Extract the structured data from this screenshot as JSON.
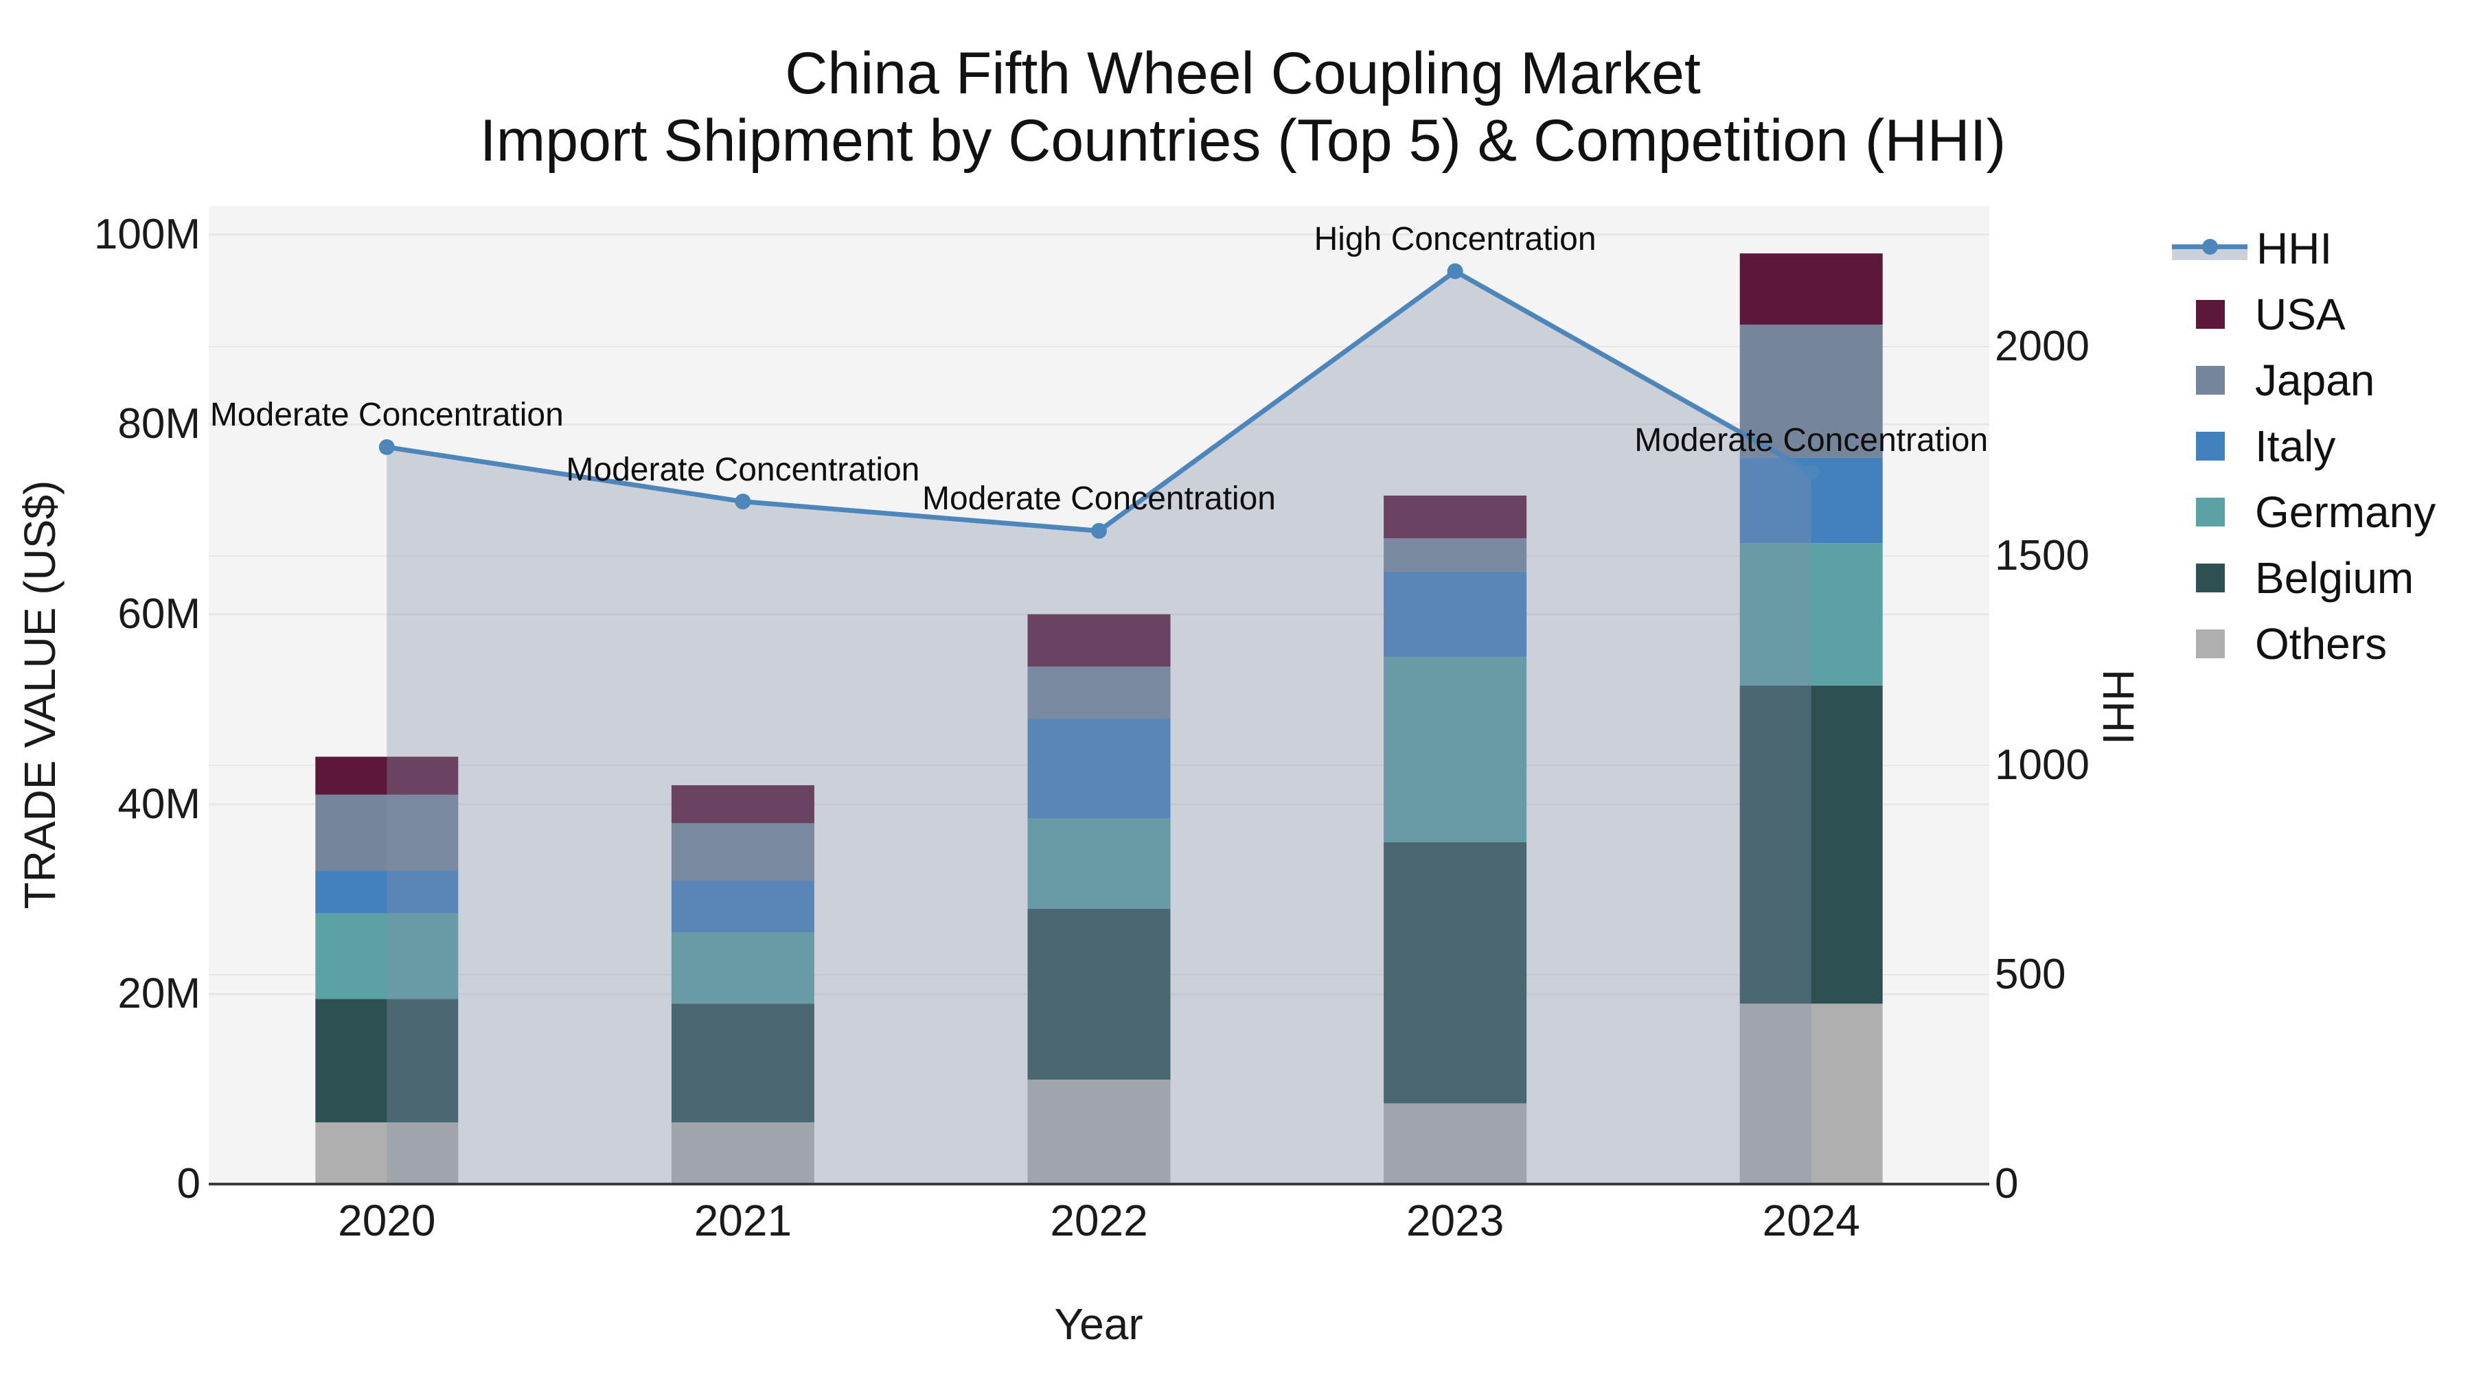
{
  "title": {
    "line1": "China Fifth Wheel Coupling Market",
    "line2": "Import Shipment by Countries (Top 5) & Competition (HHI)"
  },
  "axes": {
    "y_left": {
      "title": "TRADE VALUE (US$)",
      "ticks": [
        "0",
        "20M",
        "40M",
        "60M",
        "80M",
        "100M"
      ],
      "tick_values": [
        0,
        20,
        40,
        60,
        80,
        100
      ]
    },
    "y_right": {
      "title": "HHI",
      "ticks": [
        "0",
        "500",
        "1000",
        "1500",
        "2000"
      ],
      "tick_values": [
        0,
        500,
        1000,
        1500,
        2000
      ]
    },
    "x": {
      "title": "Year",
      "categories": [
        "2020",
        "2021",
        "2022",
        "2023",
        "2024"
      ]
    }
  },
  "legend": {
    "items": [
      {
        "label": "HHI",
        "type": "line",
        "color": "#4D86BB"
      },
      {
        "label": "USA",
        "type": "swatch",
        "color": "#5D173A"
      },
      {
        "label": "Japan",
        "type": "swatch",
        "color": "#75859A"
      },
      {
        "label": "Italy",
        "type": "swatch",
        "color": "#4380BE"
      },
      {
        "label": "Germany",
        "type": "swatch",
        "color": "#5CA2A4"
      },
      {
        "label": "Belgium",
        "type": "swatch",
        "color": "#2D5152"
      },
      {
        "label": "Others",
        "type": "swatch",
        "color": "#AFAFAF"
      }
    ]
  },
  "annotations": [
    {
      "year": "2020",
      "text": "Moderate Concentration"
    },
    {
      "year": "2021",
      "text": "Moderate Concentration"
    },
    {
      "year": "2022",
      "text": "Moderate Concentration"
    },
    {
      "year": "2023",
      "text": "High Concentration"
    },
    {
      "year": "2024",
      "text": "Moderate Concentration"
    }
  ],
  "colors": {
    "hhi_line": "#4D86BB",
    "hhi_fill": "rgba(130,145,170,0.36)",
    "plot_bg": "#F4F4F5",
    "grid": "#E7E7E9",
    "axis_line": "#3C3C3C"
  },
  "chart_data": {
    "type": "combo_stacked_bar_line",
    "title": "China Fifth Wheel Coupling Market — Import Shipment by Countries (Top 5) & Competition (HHI)",
    "xlabel": "Year",
    "ylabel_left": "TRADE VALUE (US$)",
    "ylabel_right": "HHI",
    "unit_left": "million US$",
    "categories": [
      "2020",
      "2021",
      "2022",
      "2023",
      "2024"
    ],
    "stack_order_bottom_to_top": [
      "Others",
      "Belgium",
      "Germany",
      "Italy",
      "Japan",
      "USA"
    ],
    "series": [
      {
        "name": "Others",
        "color": "#AFAFAF",
        "values": [
          6.5,
          6.5,
          11.0,
          8.5,
          19.0
        ]
      },
      {
        "name": "Belgium",
        "color": "#2D5152",
        "values": [
          13.0,
          12.5,
          18.0,
          27.5,
          33.5
        ]
      },
      {
        "name": "Germany",
        "color": "#5CA2A4",
        "values": [
          9.0,
          7.5,
          9.5,
          19.5,
          15.0
        ]
      },
      {
        "name": "Italy",
        "color": "#4380BE",
        "values": [
          4.5,
          5.5,
          10.5,
          9.0,
          9.0
        ]
      },
      {
        "name": "Japan",
        "color": "#75859A",
        "values": [
          8.0,
          6.0,
          5.5,
          3.5,
          14.0
        ]
      },
      {
        "name": "USA",
        "color": "#5D173A",
        "values": [
          4.0,
          4.0,
          5.5,
          4.5,
          7.5
        ]
      }
    ],
    "bar_totals": [
      45.0,
      42.0,
      60.0,
      72.5,
      98.0
    ],
    "line_series": {
      "name": "HHI",
      "axis": "right",
      "color": "#4D86BB",
      "fill": "tozeroy",
      "values": [
        1760,
        1630,
        1560,
        2180,
        1700
      ]
    },
    "ylim_left": [
      0,
      103
    ],
    "ylim_right": [
      0,
      2336
    ],
    "grid": true,
    "legend_position": "right"
  }
}
